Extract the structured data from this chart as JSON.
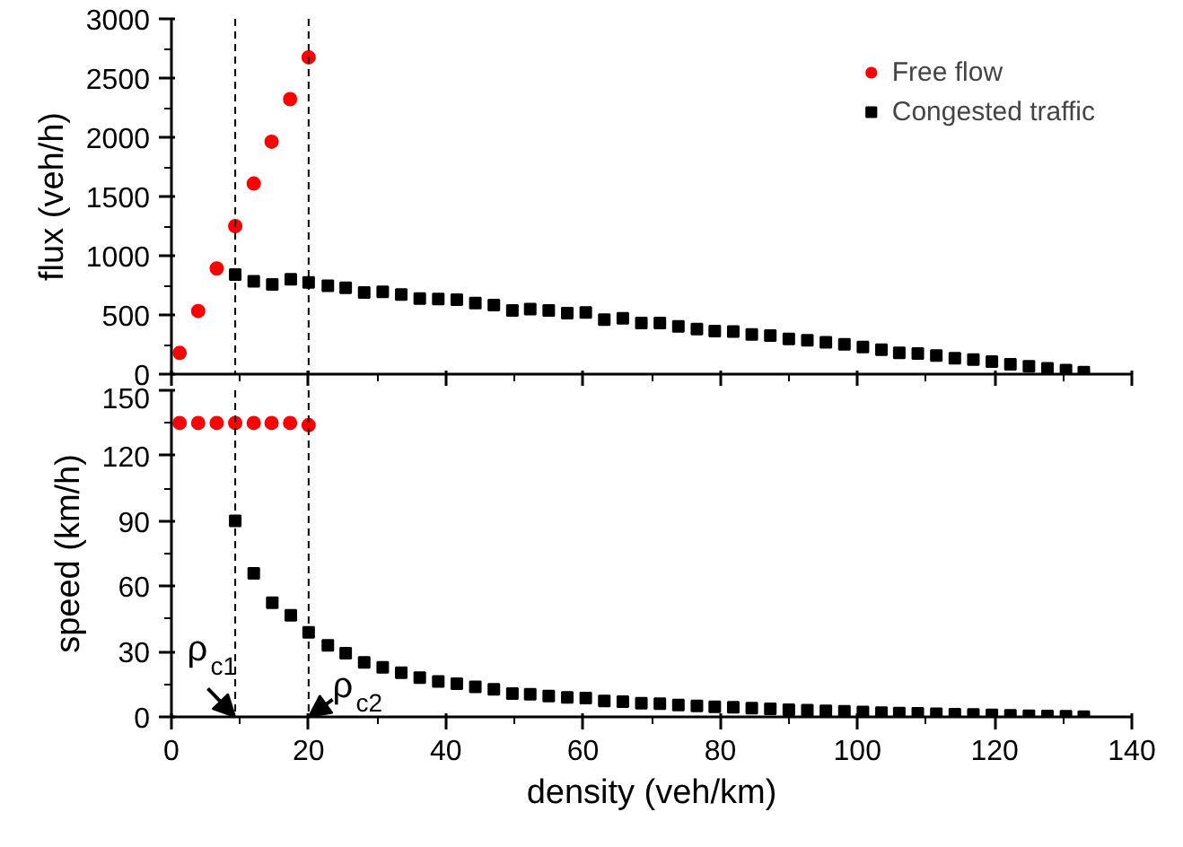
{
  "chart_data": [
    {
      "type": "scatter",
      "ylabel": "flux (veh/h)",
      "xlim": [
        0,
        140
      ],
      "xticks": [
        0,
        20,
        40,
        60,
        80,
        100,
        120,
        140
      ],
      "ylim": [
        0,
        3000
      ],
      "yticks": [
        0,
        500,
        1000,
        1500,
        2000,
        2500,
        3000
      ],
      "tick_labels": "y",
      "grid": false,
      "legend": "top right",
      "ref_lines": [
        {
          "axis": "x",
          "value": 9.3,
          "color": "#000000",
          "line_style": "dashed"
        },
        {
          "axis": "x",
          "value": 20,
          "color": "#000000",
          "line_style": "dashed"
        }
      ],
      "series": [
        {
          "name": "Free flow",
          "color": "#ff0000",
          "marker": "circle",
          "x": [
            1.2,
            3.9,
            6.6,
            9.3,
            12.0,
            14.6,
            17.3,
            20.0
          ],
          "values": [
            179,
            533,
            892,
            1250,
            1609,
            1963,
            2322,
            2675
          ]
        },
        {
          "name": "Congested traffic",
          "color": "#000000",
          "marker": "square",
          "x": [
            9.3,
            12.0,
            14.7,
            17.4,
            20.0,
            22.8,
            25.4,
            28.1,
            30.8,
            33.5,
            36.2,
            38.9,
            41.6,
            44.3,
            47.0,
            49.7,
            52.3,
            55.0,
            57.7,
            60.4,
            63.1,
            65.8,
            68.5,
            71.2,
            73.9,
            76.6,
            79.2,
            81.9,
            84.6,
            87.3,
            90.0,
            92.7,
            95.4,
            98.1,
            100.8,
            103.5,
            106.1,
            108.8,
            111.5,
            114.2,
            116.9,
            119.6,
            122.3,
            125.0,
            127.7,
            130.4,
            133.0
          ],
          "values": [
            841,
            785,
            757,
            802,
            774,
            746,
            729,
            690,
            695,
            673,
            639,
            634,
            628,
            600,
            583,
            538,
            550,
            538,
            516,
            521,
            460,
            471,
            432,
            432,
            404,
            381,
            364,
            359,
            336,
            325,
            297,
            286,
            269,
            252,
            230,
            207,
            179,
            174,
            157,
            135,
            123,
            107,
            84,
            67,
            50,
            34,
            17
          ]
        }
      ]
    },
    {
      "type": "scatter",
      "xlabel": "density (veh/km)",
      "ylabel": "speed (km/h)",
      "xlim": [
        0,
        140
      ],
      "xticks": [
        0,
        20,
        40,
        60,
        80,
        100,
        120,
        140
      ],
      "ylim": [
        0,
        150
      ],
      "yticks": [
        0,
        30,
        60,
        90,
        120,
        150
      ],
      "grid": false,
      "ref_lines": [
        {
          "axis": "x",
          "value": 9.3,
          "color": "#000000",
          "line_style": "dashed"
        },
        {
          "axis": "x",
          "value": 20,
          "color": "#000000",
          "line_style": "dashed"
        }
      ],
      "annotations": [
        {
          "text": "ρ$_{c1}$",
          "x": 9.3,
          "y": 0
        },
        {
          "text": "ρ$_{c2}$",
          "x": 20,
          "y": 0
        }
      ],
      "series": [
        {
          "color": "#ff0000",
          "marker": "circle",
          "x": [
            1.2,
            3.9,
            6.6,
            9.3,
            12.0,
            14.6,
            17.3,
            20.0
          ],
          "values": [
            135,
            135,
            135,
            135,
            135,
            135,
            135,
            134
          ]
        },
        {
          "color": "#000000",
          "marker": "square",
          "x": [
            9.3,
            12.0,
            14.7,
            17.4,
            20.0,
            22.8,
            25.4,
            28.1,
            30.8,
            33.5,
            36.2,
            38.9,
            41.6,
            44.3,
            47.0,
            49.7,
            52.3,
            55.0,
            57.7,
            60.4,
            63.1,
            65.8,
            68.5,
            71.2,
            73.9,
            76.6,
            79.2,
            81.9,
            84.6,
            87.3,
            90.0,
            92.7,
            95.4,
            98.1,
            100.8,
            103.5,
            106.1,
            108.8,
            111.5,
            114.2,
            116.9,
            119.6,
            122.3,
            125.0,
            127.7,
            130.4,
            133.0
          ],
          "values": [
            90,
            65.9,
            52.4,
            46.7,
            38.8,
            32.9,
            29.3,
            25,
            22.8,
            20.3,
            18,
            16.3,
            15.2,
            13.8,
            12.7,
            10.7,
            10.4,
            9.6,
            9,
            8.7,
            7.3,
            7,
            6.3,
            6.1,
            5.5,
            5.0,
            4.6,
            4.4,
            4.0,
            3.7,
            3.3,
            3.1,
            2.8,
            2.6,
            2.3,
            2.0,
            1.7,
            1.6,
            1.4,
            1.2,
            1.1,
            0.9,
            0.7,
            0.5,
            0.4,
            0.3,
            0.1
          ]
        }
      ]
    }
  ]
}
